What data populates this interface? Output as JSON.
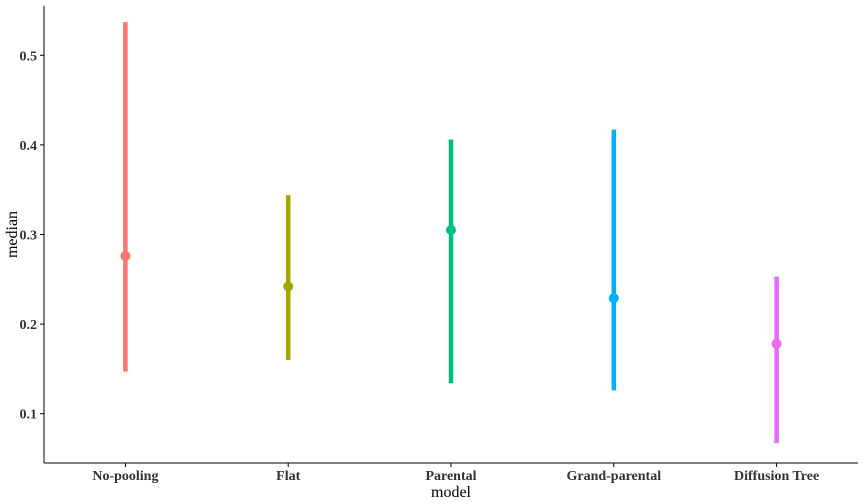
{
  "chart_data": {
    "type": "pointrange",
    "title": "",
    "xlabel": "model",
    "ylabel": "median",
    "ylim": [
      0.045,
      0.555
    ],
    "yticks": [
      0.1,
      0.2,
      0.3,
      0.4,
      0.5
    ],
    "ytick_labels": [
      "0.1",
      "0.2",
      "0.3",
      "0.4",
      "0.5"
    ],
    "grid": false,
    "legend": "none",
    "categories": [
      "No-pooling",
      "Flat",
      "Parental",
      "Grand-parental",
      "Diffusion Tree"
    ],
    "series": [
      {
        "values": [
          0.276,
          0.242,
          0.305,
          0.229,
          0.178
        ],
        "lower": [
          0.147,
          0.16,
          0.134,
          0.126,
          0.067
        ],
        "upper": [
          0.537,
          0.344,
          0.406,
          0.417,
          0.253
        ],
        "colors": [
          "#F8766D",
          "#A3A500",
          "#00BF7D",
          "#00B0F6",
          "#E76BF3"
        ]
      }
    ]
  }
}
